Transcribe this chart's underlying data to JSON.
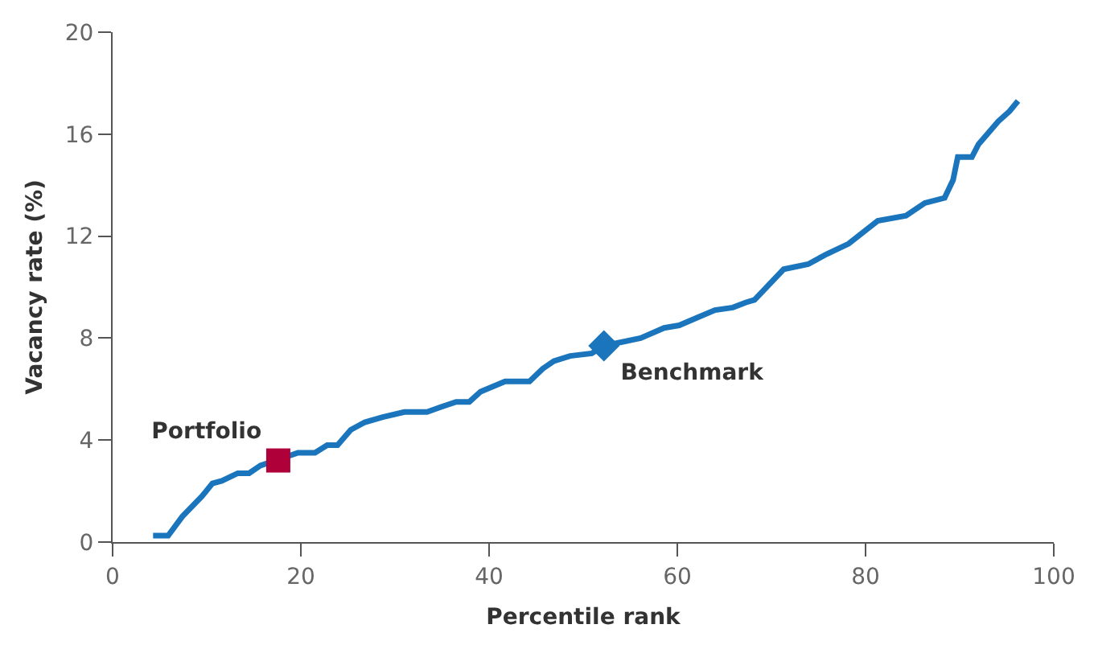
{
  "chart_data": {
    "type": "line",
    "xlabel": "Percentile rank",
    "ylabel": "Vacancy rate (%)",
    "xlim": [
      0,
      100
    ],
    "xticks": [
      0,
      20,
      40,
      60,
      80,
      100
    ],
    "ylim": [
      0,
      20
    ],
    "yticks": [
      0,
      4,
      8,
      12,
      16,
      20
    ],
    "grid": false,
    "legend": false,
    "series": [
      {
        "type": "line",
        "color": "#1a75bc",
        "marker": "none",
        "x": [
          4.3,
          5.9,
          7.4,
          9.5,
          10.6,
          11.6,
          13.3,
          14.5,
          15.7,
          19.7,
          21.5,
          22.8,
          23.9,
          25.3,
          26.8,
          28.7,
          31,
          33.4,
          34.9,
          36.5,
          37.9,
          39.1,
          41.7,
          44.3,
          45.7,
          46.9,
          48.6,
          50.9,
          52.2,
          56.1,
          58.6,
          60.2,
          62.1,
          64.0,
          65.9,
          67.3,
          68.2,
          71.3,
          73.9,
          75.9,
          78.2,
          81.3,
          84.3,
          86.3,
          88.4,
          89.3,
          89.8,
          91.3,
          92.0,
          94.1,
          95.3,
          96.2
        ],
        "values": [
          0.25,
          0.25,
          1.0,
          1.8,
          2.3,
          2.4,
          2.7,
          2.7,
          3.0,
          3.5,
          3.5,
          3.8,
          3.8,
          4.4,
          4.7,
          4.9,
          5.1,
          5.1,
          5.3,
          5.5,
          5.5,
          5.9,
          6.3,
          6.3,
          6.8,
          7.1,
          7.3,
          7.4,
          7.7,
          8.0,
          8.4,
          8.5,
          8.8,
          9.1,
          9.2,
          9.4,
          9.5,
          10.7,
          10.9,
          11.3,
          11.7,
          12.6,
          12.8,
          13.3,
          13.5,
          14.2,
          15.1,
          15.1,
          15.6,
          16.5,
          16.9,
          17.3
        ]
      },
      {
        "type": "scatter",
        "name": "Portfolio",
        "color": "#b0003a",
        "marker": "square",
        "x": [
          17.6
        ],
        "values": [
          3.2
        ]
      },
      {
        "type": "scatter",
        "name": "Benchmark",
        "color": "#1a75bc",
        "marker": "diamond",
        "x": [
          52.2
        ],
        "values": [
          7.7
        ]
      }
    ]
  }
}
